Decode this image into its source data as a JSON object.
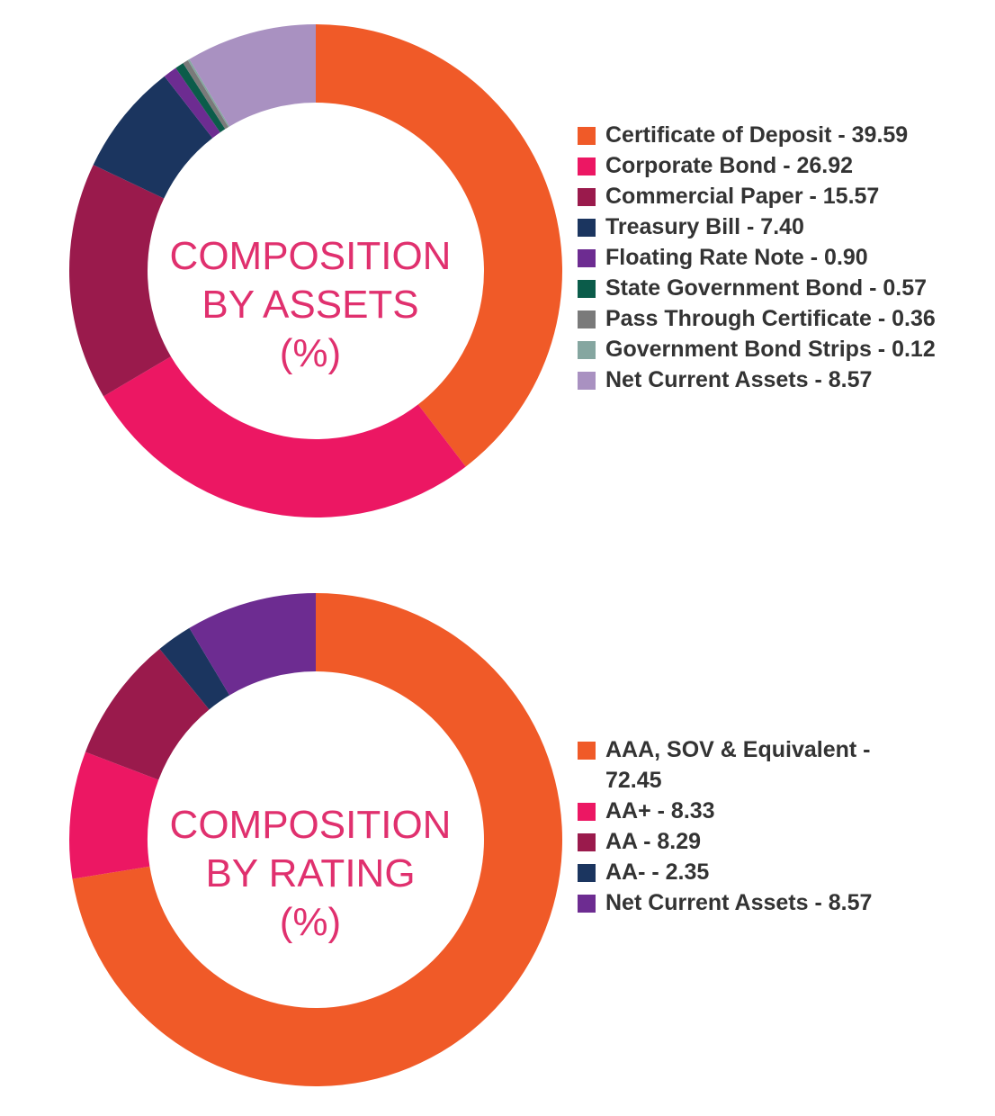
{
  "chart_data": [
    {
      "type": "pie",
      "title_lines": [
        "COMPOSITION",
        "BY ASSETS",
        "(%)"
      ],
      "categories": [
        "Certificate of Deposit",
        "Corporate Bond",
        "Commercial Paper",
        "Treasury Bill",
        "Floating Rate Note",
        "State Government Bond",
        "Pass Through Certificate",
        "Government Bond Strips",
        "Net Current Assets"
      ],
      "values": [
        39.59,
        26.92,
        15.57,
        7.4,
        0.9,
        0.57,
        0.36,
        0.12,
        8.57
      ],
      "value_labels": [
        "39.59",
        "26.92",
        "15.57",
        "7.40",
        "0.90",
        "0.57",
        "0.36",
        "0.12",
        "8.57"
      ],
      "legend_labels": [
        "Certificate of Deposit - 39.59",
        "Corporate Bond - 26.92",
        "Commercial Paper - 15.57",
        "Treasury Bill - 7.40",
        "Floating Rate Note - 0.90",
        "State Government Bond - 0.57",
        "Pass Through Certificate - 0.36",
        "Government Bond Strips - 0.12",
        "Net Current Assets - 8.57"
      ],
      "colors": [
        "#f05a28",
        "#ec1763",
        "#9a1a4c",
        "#1b355f",
        "#6d2c91",
        "#0b5c4a",
        "#7a7a7a",
        "#85a6a0",
        "#a991c1"
      ],
      "legend_position": "right",
      "style": "donut"
    },
    {
      "type": "pie",
      "title_lines": [
        "COMPOSITION",
        "BY RATING",
        "(%)"
      ],
      "categories": [
        "AAA, SOV & Equivalent",
        "AA+",
        "AA",
        "AA-",
        "Net Current Assets"
      ],
      "values": [
        72.45,
        8.33,
        8.29,
        2.35,
        8.57
      ],
      "value_labels": [
        "72.45",
        "8.33",
        "8.29",
        "2.35",
        "8.57"
      ],
      "legend_labels": [
        "AAA, SOV & Equivalent - 72.45",
        "AA+ - 8.33",
        "AA - 8.29",
        "AA- - 2.35",
        "Net Current Assets - 8.57"
      ],
      "colors": [
        "#f05a28",
        "#ec1763",
        "#9a1a4c",
        "#1b355f",
        "#6d2c91"
      ],
      "legend_position": "right",
      "style": "donut"
    }
  ]
}
